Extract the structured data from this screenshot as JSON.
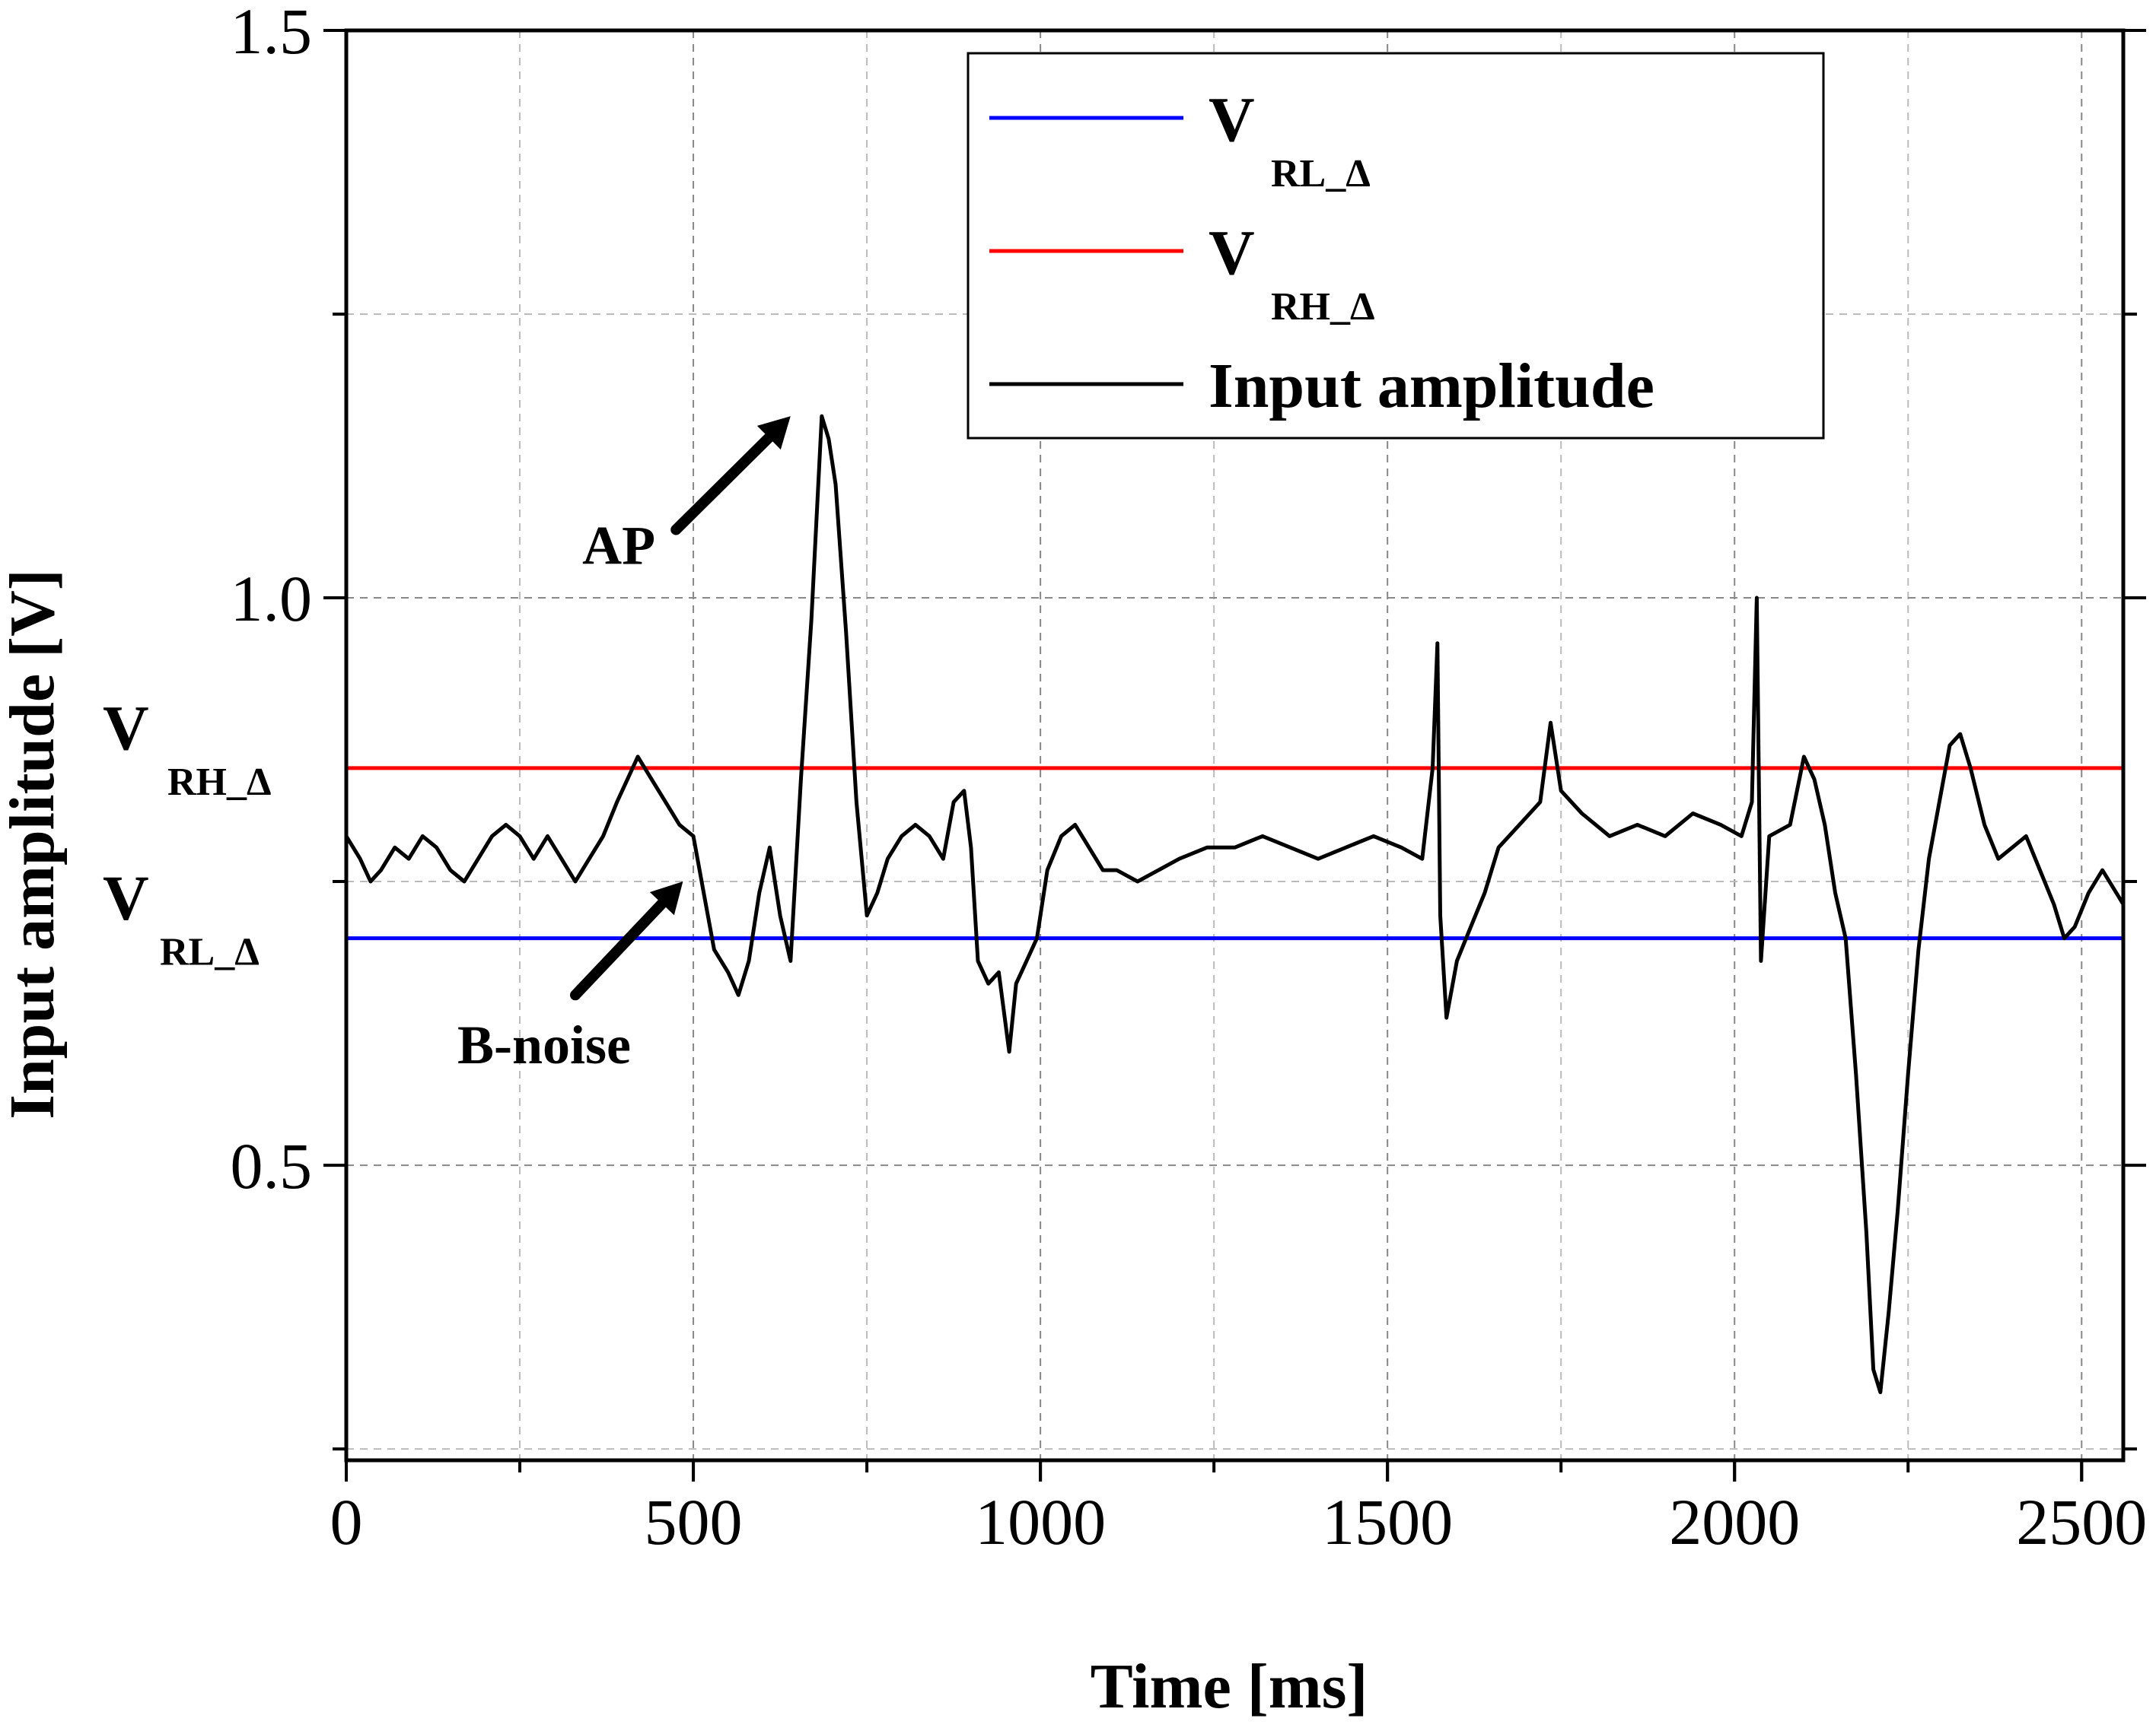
{
  "chart_data": {
    "type": "line",
    "xlabel": "Time [ms]",
    "ylabel": "Input amplitude [V]",
    "xlim": [
      0,
      2560
    ],
    "ylim": [
      0.24,
      1.5
    ],
    "x_ticks": [
      0,
      500,
      1000,
      1500,
      2000,
      2500
    ],
    "x_tick_labels": [
      "0",
      "500",
      "1000",
      "1500",
      "2000",
      "2500"
    ],
    "y_ticks": [
      0.5,
      1.0,
      1.5
    ],
    "y_tick_labels": [
      "0.5",
      "1.0",
      "1.5"
    ],
    "y_minor_ticks": [
      0.25,
      0.75,
      1.25
    ],
    "grid": true,
    "legend_position": "top-right",
    "series": [
      {
        "name_main": "V",
        "name_sub": "RL_Δ",
        "kind": "hline",
        "color": "#0000ff",
        "y": 0.7
      },
      {
        "name_main": "V",
        "name_sub": "RH_Δ",
        "kind": "hline",
        "color": "#ff0000",
        "y": 0.85
      },
      {
        "name": "Input amplitude",
        "kind": "trace",
        "color": "#000000",
        "points": [
          [
            0,
            0.79
          ],
          [
            20,
            0.77
          ],
          [
            35,
            0.75
          ],
          [
            50,
            0.76
          ],
          [
            70,
            0.78
          ],
          [
            90,
            0.77
          ],
          [
            110,
            0.79
          ],
          [
            130,
            0.78
          ],
          [
            150,
            0.76
          ],
          [
            170,
            0.75
          ],
          [
            190,
            0.77
          ],
          [
            210,
            0.79
          ],
          [
            230,
            0.8
          ],
          [
            250,
            0.79
          ],
          [
            270,
            0.77
          ],
          [
            290,
            0.79
          ],
          [
            310,
            0.77
          ],
          [
            330,
            0.75
          ],
          [
            350,
            0.77
          ],
          [
            370,
            0.79
          ],
          [
            390,
            0.82
          ],
          [
            405,
            0.84
          ],
          [
            420,
            0.86
          ],
          [
            440,
            0.84
          ],
          [
            460,
            0.82
          ],
          [
            480,
            0.8
          ],
          [
            500,
            0.79
          ],
          [
            515,
            0.74
          ],
          [
            530,
            0.69
          ],
          [
            550,
            0.67
          ],
          [
            565,
            0.65
          ],
          [
            580,
            0.68
          ],
          [
            595,
            0.74
          ],
          [
            610,
            0.78
          ],
          [
            625,
            0.72
          ],
          [
            640,
            0.68
          ],
          [
            655,
            0.84
          ],
          [
            670,
            0.98
          ],
          [
            685,
            1.16
          ],
          [
            695,
            1.14
          ],
          [
            705,
            1.1
          ],
          [
            720,
            0.97
          ],
          [
            735,
            0.82
          ],
          [
            750,
            0.72
          ],
          [
            765,
            0.74
          ],
          [
            780,
            0.77
          ],
          [
            800,
            0.79
          ],
          [
            820,
            0.8
          ],
          [
            840,
            0.79
          ],
          [
            860,
            0.77
          ],
          [
            875,
            0.82
          ],
          [
            890,
            0.83
          ],
          [
            900,
            0.78
          ],
          [
            910,
            0.68
          ],
          [
            925,
            0.66
          ],
          [
            940,
            0.67
          ],
          [
            955,
            0.6
          ],
          [
            965,
            0.66
          ],
          [
            980,
            0.68
          ],
          [
            995,
            0.7
          ],
          [
            1010,
            0.76
          ],
          [
            1030,
            0.79
          ],
          [
            1050,
            0.8
          ],
          [
            1070,
            0.78
          ],
          [
            1090,
            0.76
          ],
          [
            1110,
            0.76
          ],
          [
            1140,
            0.75
          ],
          [
            1170,
            0.76
          ],
          [
            1200,
            0.77
          ],
          [
            1240,
            0.78
          ],
          [
            1280,
            0.78
          ],
          [
            1320,
            0.79
          ],
          [
            1360,
            0.78
          ],
          [
            1400,
            0.77
          ],
          [
            1440,
            0.78
          ],
          [
            1480,
            0.79
          ],
          [
            1520,
            0.78
          ],
          [
            1550,
            0.77
          ],
          [
            1565,
            0.85
          ],
          [
            1572,
            0.96
          ],
          [
            1576,
            0.72
          ],
          [
            1585,
            0.63
          ],
          [
            1600,
            0.68
          ],
          [
            1620,
            0.71
          ],
          [
            1640,
            0.74
          ],
          [
            1660,
            0.78
          ],
          [
            1690,
            0.8
          ],
          [
            1720,
            0.82
          ],
          [
            1735,
            0.89
          ],
          [
            1750,
            0.83
          ],
          [
            1780,
            0.81
          ],
          [
            1820,
            0.79
          ],
          [
            1860,
            0.8
          ],
          [
            1900,
            0.79
          ],
          [
            1940,
            0.81
          ],
          [
            1980,
            0.8
          ],
          [
            2010,
            0.79
          ],
          [
            2025,
            0.82
          ],
          [
            2032,
            1.0
          ],
          [
            2038,
            0.68
          ],
          [
            2050,
            0.79
          ],
          [
            2080,
            0.8
          ],
          [
            2100,
            0.86
          ],
          [
            2115,
            0.84
          ],
          [
            2130,
            0.8
          ],
          [
            2145,
            0.74
          ],
          [
            2160,
            0.7
          ],
          [
            2175,
            0.58
          ],
          [
            2190,
            0.44
          ],
          [
            2200,
            0.32
          ],
          [
            2210,
            0.3
          ],
          [
            2222,
            0.37
          ],
          [
            2235,
            0.46
          ],
          [
            2250,
            0.58
          ],
          [
            2265,
            0.69
          ],
          [
            2280,
            0.77
          ],
          [
            2295,
            0.82
          ],
          [
            2310,
            0.87
          ],
          [
            2325,
            0.88
          ],
          [
            2340,
            0.85
          ],
          [
            2360,
            0.8
          ],
          [
            2380,
            0.77
          ],
          [
            2400,
            0.78
          ],
          [
            2420,
            0.79
          ],
          [
            2440,
            0.76
          ],
          [
            2460,
            0.73
          ],
          [
            2475,
            0.7
          ],
          [
            2490,
            0.71
          ],
          [
            2510,
            0.74
          ],
          [
            2530,
            0.76
          ],
          [
            2550,
            0.74
          ],
          [
            2560,
            0.73
          ]
        ]
      }
    ],
    "annotations": [
      {
        "text": "AP",
        "text_x": 340,
        "text_y": 1.03,
        "arrow_from": [
          475,
          1.06
        ],
        "arrow_to": [
          640,
          1.16
        ]
      },
      {
        "text": "B-noise",
        "text_x": 160,
        "text_y": 0.59,
        "arrow_from": [
          330,
          0.65
        ],
        "arrow_to": [
          485,
          0.75
        ]
      }
    ],
    "y_side_labels": [
      {
        "main": "V",
        "sub": "RH_Δ",
        "y": 0.85
      },
      {
        "main": "V",
        "sub": "RL_Δ",
        "y": 0.7
      }
    ]
  }
}
